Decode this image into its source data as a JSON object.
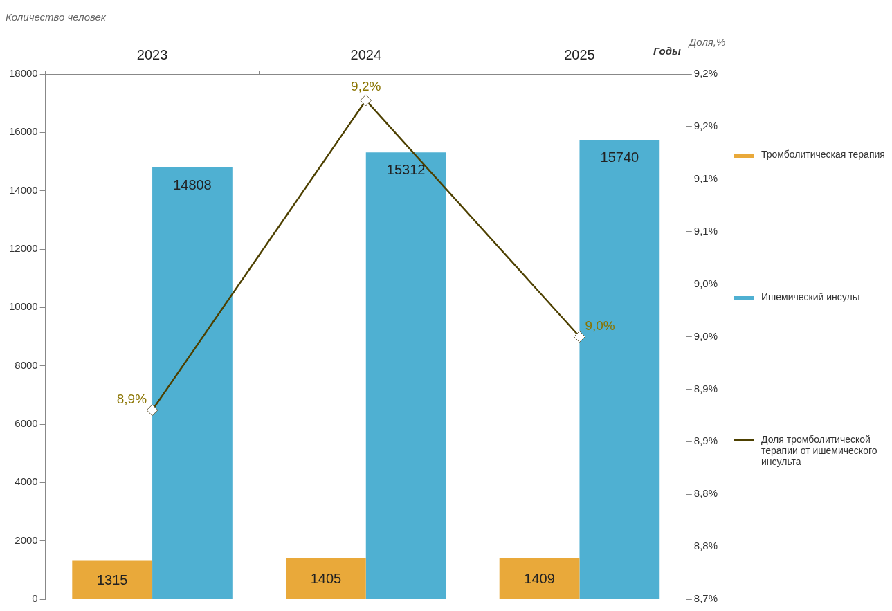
{
  "chart_data": {
    "type": "bar",
    "ylabel": "Количество человек",
    "y2label": "Доля,%",
    "xlabel": "Годы",
    "categories": [
      "2023",
      "2024",
      "2025"
    ],
    "series": [
      {
        "name": "Тромболитическая терапия",
        "color": "#e9a93a",
        "values": [
          1315,
          1405,
          1409
        ],
        "value_labels": [
          "1315",
          "1405",
          "1409"
        ]
      },
      {
        "name": "Ишемический инсульт",
        "color": "#4fb0d2",
        "values": [
          14808,
          15312,
          15740
        ],
        "value_labels": [
          "14808",
          "15312",
          "15740"
        ]
      },
      {
        "name": "Доля тромболитической терапии от ишемического инсульта",
        "type": "line",
        "axis": "y2",
        "color": "#4d4000",
        "values": [
          8.88,
          9.175,
          8.95
        ],
        "value_labels": [
          "8,9%",
          "9,2%",
          "9,0%"
        ]
      }
    ],
    "marker": "diamond",
    "legend": "right",
    "ylim": [
      0,
      18000
    ],
    "yticks": [
      0,
      2000,
      4000,
      6000,
      8000,
      10000,
      12000,
      14000,
      16000,
      18000
    ],
    "y2lim": [
      8.7,
      9.2
    ],
    "y2ticks": [
      {
        "value": 8.7,
        "label": "8,7%"
      },
      {
        "value": 8.75,
        "label": "8,8%"
      },
      {
        "value": 8.8,
        "label": "8,8%"
      },
      {
        "value": 8.85,
        "label": "8,9%"
      },
      {
        "value": 8.9,
        "label": "8,9%"
      },
      {
        "value": 8.95,
        "label": "9,0%"
      },
      {
        "value": 9.0,
        "label": "9,0%"
      },
      {
        "value": 9.05,
        "label": "9,1%"
      },
      {
        "value": 9.1,
        "label": "9,1%"
      },
      {
        "value": 9.15,
        "label": "9,2%"
      },
      {
        "value": 9.2,
        "label": "9,2%"
      }
    ]
  }
}
